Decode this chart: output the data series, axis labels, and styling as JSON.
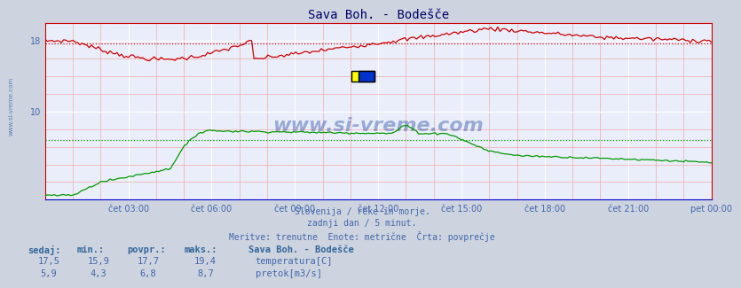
{
  "title": "Sava Boh. - Bodešče",
  "bg_color": "#cdd4e0",
  "plot_bg_color": "#eaeefa",
  "grid_major_color": "#ffffff",
  "grid_minor_color": "#f0aaaa",
  "axis_color": "#0000bb",
  "title_color": "#000066",
  "text_color": "#4466aa",
  "label_bold_color": "#336699",
  "ylim": [
    0,
    20
  ],
  "yticks": [
    10,
    18
  ],
  "xlabel_times": [
    "čet 03:00",
    "čet 06:00",
    "čet 09:00",
    "čet 12:00",
    "čet 15:00",
    "čet 18:00",
    "čet 21:00",
    "pet 00:00"
  ],
  "n_points": 288,
  "temp_color": "#cc0000",
  "flow_color": "#009900",
  "avg_temp": 17.7,
  "avg_flow": 6.8,
  "watermark": "www.si-vreme.com",
  "subtitle1": "Slovenija / reke in morje.",
  "subtitle2": "zadnji dan / 5 minut.",
  "subtitle3": "Meritve: trenutne  Enote: metrične  Črta: povprečje",
  "legend_title": "Sava Boh. - Bodešče",
  "legend_items": [
    {
      "label": "temperatura[C]",
      "color": "#cc0000"
    },
    {
      "label": "pretok[m3/s]",
      "color": "#009900"
    }
  ],
  "stats_headers": [
    "sedaj:",
    "min.:",
    "povpr.:",
    "maks.:"
  ],
  "stats_temp": [
    "17,5",
    "15,9",
    "17,7",
    "19,4"
  ],
  "stats_flow": [
    "5,9",
    "4,3",
    "6,8",
    "8,7"
  ]
}
